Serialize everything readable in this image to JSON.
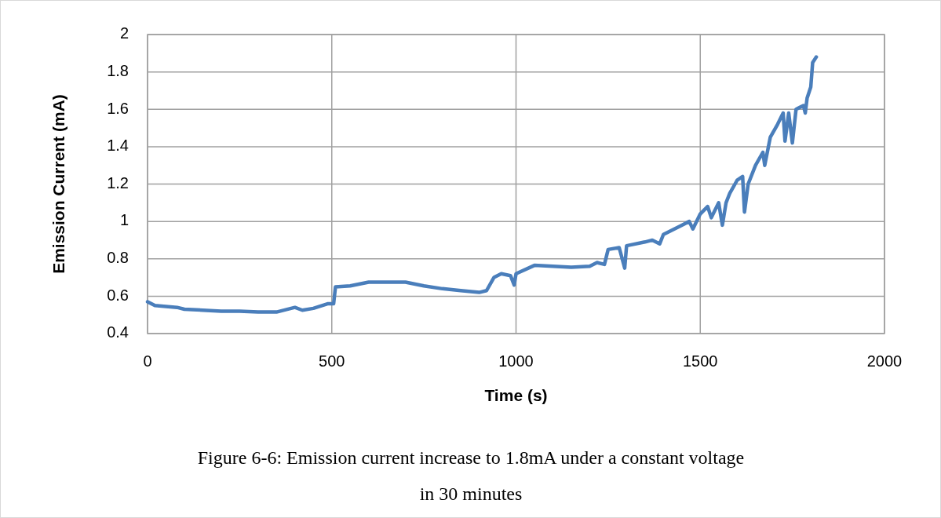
{
  "chart_data": {
    "type": "line",
    "xlabel": "Time (s)",
    "ylabel": "Emission Current (mA)",
    "annotations": [
      "Figure 6-6: Emission current increase to 1.8mA under a constant voltage in 30 minutes"
    ],
    "xlim": [
      0,
      2000
    ],
    "xticks": [
      0,
      500,
      1000,
      1500,
      2000
    ],
    "ylim": [
      0.4,
      2
    ],
    "yticks": [
      0.4,
      0.6,
      0.8,
      1,
      1.2,
      1.4,
      1.6,
      1.8,
      2
    ],
    "grid": true,
    "marker": "none",
    "line_style": "solid",
    "series": [
      {
        "color": "#4a7ebb",
        "x": [
          0,
          20,
          50,
          80,
          100,
          150,
          200,
          250,
          300,
          350,
          400,
          420,
          450,
          490,
          505,
          510,
          550,
          600,
          650,
          700,
          750,
          800,
          850,
          900,
          920,
          940,
          960,
          985,
          995,
          1000,
          1050,
          1100,
          1150,
          1200,
          1220,
          1240,
          1250,
          1280,
          1295,
          1300,
          1350,
          1370,
          1390,
          1400,
          1450,
          1470,
          1480,
          1500,
          1520,
          1530,
          1550,
          1560,
          1570,
          1580,
          1600,
          1615,
          1620,
          1630,
          1650,
          1670,
          1675,
          1690,
          1710,
          1725,
          1730,
          1740,
          1750,
          1760,
          1780,
          1785,
          1790,
          1800,
          1805,
          1815
        ],
        "values": [
          0.57,
          0.55,
          0.545,
          0.54,
          0.53,
          0.525,
          0.52,
          0.52,
          0.515,
          0.515,
          0.54,
          0.525,
          0.535,
          0.56,
          0.56,
          0.65,
          0.655,
          0.675,
          0.675,
          0.675,
          0.655,
          0.64,
          0.63,
          0.62,
          0.63,
          0.7,
          0.72,
          0.71,
          0.66,
          0.72,
          0.765,
          0.76,
          0.755,
          0.76,
          0.78,
          0.77,
          0.85,
          0.86,
          0.75,
          0.87,
          0.89,
          0.9,
          0.88,
          0.93,
          0.98,
          1.0,
          0.96,
          1.04,
          1.08,
          1.02,
          1.1,
          0.98,
          1.1,
          1.15,
          1.22,
          1.24,
          1.05,
          1.2,
          1.3,
          1.37,
          1.3,
          1.45,
          1.52,
          1.58,
          1.43,
          1.58,
          1.42,
          1.6,
          1.62,
          1.58,
          1.66,
          1.72,
          1.85,
          1.88
        ]
      }
    ]
  }
}
